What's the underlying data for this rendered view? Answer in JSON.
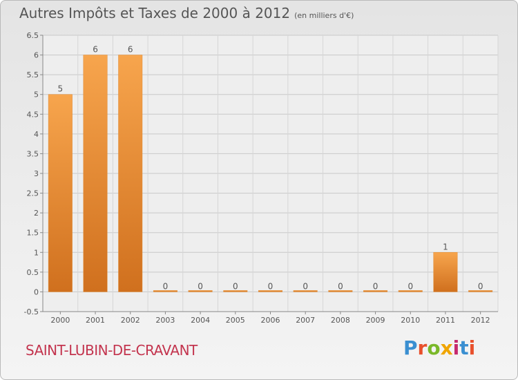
{
  "header": {
    "title": "Autres Impôts et Taxes de 2000 à 2012",
    "subtitle": "(en milliers d'€)"
  },
  "footer": {
    "commune": "SAINT-LUBIN-DE-CRAVANT",
    "logo": "Proxiti",
    "logo_colors": [
      "#3a8fd1",
      "#e8502c",
      "#7ab829",
      "#f0a500",
      "#c62a6e",
      "#3a8fd1",
      "#e8502c"
    ]
  },
  "chart_data": {
    "type": "bar",
    "title": "Autres Impôts et Taxes de 2000 à 2012",
    "categories": [
      "2000",
      "2001",
      "2002",
      "2003",
      "2004",
      "2005",
      "2006",
      "2007",
      "2008",
      "2009",
      "2010",
      "2011",
      "2012"
    ],
    "values": [
      5,
      6,
      6,
      0,
      0,
      0,
      0,
      0,
      0,
      0,
      0,
      1,
      0
    ],
    "data_labels": [
      "5",
      "6",
      "6",
      "0",
      "0",
      "0",
      "0",
      "0",
      "0",
      "0",
      "0",
      "1",
      "0"
    ],
    "y_ticks": [
      "-0.5",
      "0",
      "0.5",
      "1",
      "1.5",
      "2",
      "2.5",
      "3",
      "3.5",
      "4",
      "4.5",
      "5",
      "5.5",
      "6",
      "6.5"
    ],
    "ylim": [
      -0.5,
      6.5
    ],
    "grid": true,
    "bar_color": "#f29a3e"
  }
}
